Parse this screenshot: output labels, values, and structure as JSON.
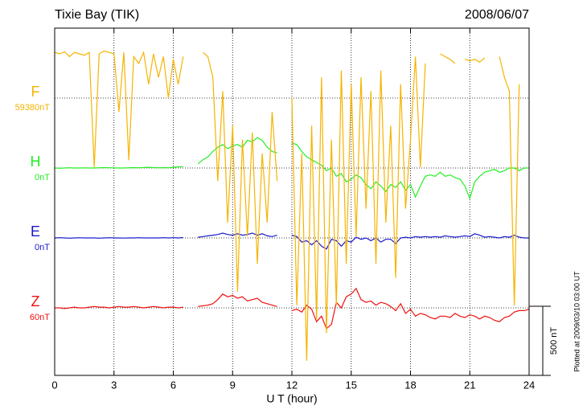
{
  "chart_data": {
    "type": "line",
    "title": "Tixie Bay (TIK)",
    "date": "2008/06/07",
    "x_label": "U T (hour)",
    "footnote": "Plotted at 2009/03/10 03:00 UT",
    "scale_bar": {
      "value": 500,
      "label": "500 nT"
    },
    "xlim": [
      0,
      24
    ],
    "xticks": [
      0,
      3,
      6,
      9,
      12,
      15,
      18,
      21,
      24
    ],
    "grid": true,
    "x": [
      0,
      0.25,
      0.5,
      0.75,
      1,
      1.25,
      1.5,
      1.75,
      2,
      2.25,
      2.5,
      2.75,
      3,
      3.25,
      3.5,
      3.75,
      4,
      4.25,
      4.5,
      4.75,
      5,
      5.25,
      5.5,
      5.75,
      6,
      6.25,
      6.5,
      6.75,
      7,
      7.25,
      7.5,
      7.75,
      8,
      8.25,
      8.5,
      8.75,
      9,
      9.25,
      9.5,
      9.75,
      10,
      10.25,
      10.5,
      10.75,
      11,
      11.25,
      11.5,
      11.75,
      12,
      12.25,
      12.5,
      12.75,
      13,
      13.25,
      13.5,
      13.75,
      14,
      14.25,
      14.5,
      14.75,
      15,
      15.25,
      15.5,
      15.75,
      16,
      16.25,
      16.5,
      16.75,
      17,
      17.25,
      17.5,
      17.75,
      18,
      18.25,
      18.5,
      18.75,
      19,
      19.25,
      19.5,
      19.75,
      20,
      20.25,
      20.5,
      20.75,
      21,
      21.25,
      21.5,
      21.75,
      22,
      22.25,
      22.5,
      22.75,
      23,
      23.25,
      23.5,
      23.75,
      24
    ],
    "series": [
      {
        "name": "F",
        "baseline_label": "59380nT",
        "color": "#f5b400",
        "values": [
          330,
          320,
          335,
          300,
          330,
          320,
          310,
          330,
          -500,
          320,
          340,
          330,
          320,
          -100,
          330,
          -450,
          300,
          250,
          330,
          100,
          320,
          150,
          300,
          0,
          280,
          100,
          300,
          null,
          null,
          null,
          330,
          300,
          150,
          -600,
          50,
          -900,
          -200,
          -1400,
          -300,
          -1000,
          -250,
          -1200,
          -400,
          -900,
          -100,
          -600,
          null,
          null,
          0,
          -1500,
          -400,
          -1900,
          -200,
          -1600,
          150,
          -1700,
          -300,
          -1500,
          200,
          -1200,
          100,
          -1000,
          150,
          -800,
          50,
          -1200,
          200,
          -900,
          -200,
          -1300,
          100,
          -800,
          -300,
          300,
          -500,
          250,
          null,
          null,
          320,
          300,
          280,
          250,
          null,
          280,
          270,
          280,
          260,
          290,
          null,
          null,
          300,
          150,
          50,
          -1500,
          100,
          null,
          320
        ]
      },
      {
        "name": "H",
        "baseline_label": "0nT",
        "color": "#22ee22",
        "values": [
          0,
          -2,
          0,
          2,
          0,
          0,
          1,
          0,
          0,
          2,
          3,
          2,
          1,
          0,
          0,
          2,
          3,
          2,
          4,
          5,
          3,
          2,
          3,
          2,
          5,
          8,
          10,
          null,
          null,
          30,
          60,
          80,
          120,
          150,
          170,
          140,
          160,
          170,
          150,
          200,
          190,
          220,
          200,
          150,
          120,
          110,
          null,
          null,
          180,
          170,
          120,
          80,
          60,
          40,
          20,
          -20,
          0,
          -60,
          -40,
          -100,
          -80,
          -50,
          -70,
          -120,
          -150,
          -100,
          -130,
          -170,
          -120,
          -140,
          -100,
          -160,
          -120,
          -210,
          -130,
          -60,
          -50,
          -60,
          -30,
          -60,
          -50,
          -70,
          -80,
          -130,
          -220,
          -100,
          -60,
          -30,
          -20,
          -10,
          -30,
          -20,
          0,
          0,
          -20,
          0,
          0
        ]
      },
      {
        "name": "E",
        "baseline_label": "0nT",
        "color": "#1a1acc",
        "values": [
          0,
          2,
          0,
          -2,
          0,
          1,
          0,
          0,
          0,
          -2,
          0,
          2,
          0,
          0,
          -1,
          0,
          0,
          2,
          0,
          0,
          0,
          0,
          2,
          0,
          2,
          0,
          3,
          null,
          null,
          5,
          10,
          15,
          20,
          25,
          35,
          25,
          20,
          30,
          20,
          25,
          35,
          20,
          30,
          15,
          10,
          20,
          null,
          null,
          20,
          10,
          -30,
          -20,
          -50,
          -20,
          -60,
          -80,
          -10,
          -20,
          -60,
          -20,
          -30,
          5,
          -10,
          0,
          -20,
          0,
          -30,
          -10,
          -10,
          -40,
          0,
          5,
          0,
          10,
          5,
          10,
          5,
          10,
          5,
          15,
          10,
          5,
          10,
          15,
          10,
          30,
          20,
          5,
          10,
          5,
          0,
          10,
          5,
          20,
          5,
          0,
          0
        ]
      },
      {
        "name": "Z",
        "baseline_label": "60nT",
        "color": "#ee1111",
        "values": [
          0,
          0,
          -5,
          0,
          5,
          0,
          0,
          5,
          10,
          5,
          5,
          0,
          5,
          10,
          5,
          5,
          10,
          5,
          0,
          5,
          10,
          5,
          0,
          5,
          5,
          0,
          5,
          null,
          null,
          10,
          15,
          20,
          30,
          60,
          100,
          80,
          90,
          70,
          80,
          50,
          60,
          70,
          40,
          30,
          20,
          10,
          null,
          null,
          -20,
          -10,
          -30,
          20,
          -10,
          -100,
          -60,
          -150,
          -120,
          40,
          0,
          80,
          100,
          140,
          60,
          40,
          50,
          20,
          40,
          30,
          10,
          -20,
          30,
          -40,
          -10,
          -60,
          -40,
          -50,
          -70,
          -80,
          -60,
          -60,
          -70,
          -40,
          -60,
          -70,
          -50,
          -60,
          -80,
          -60,
          -70,
          -90,
          -100,
          -70,
          -60,
          -30,
          -20,
          -20,
          -10
        ]
      }
    ]
  }
}
